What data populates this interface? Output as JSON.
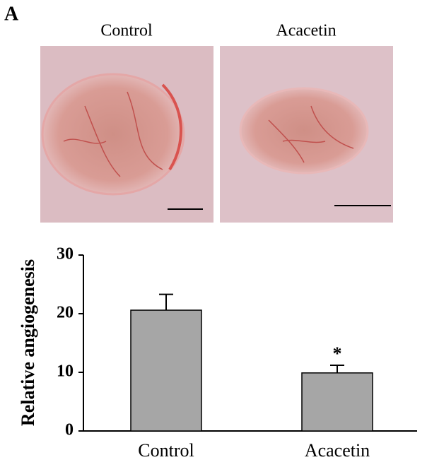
{
  "panel_label": "A",
  "images": [
    {
      "title": "Control"
    },
    {
      "title": "Acacetin"
    }
  ],
  "chart_data": {
    "type": "bar",
    "categories": [
      "Control",
      "Acacetin"
    ],
    "values": [
      20.6,
      9.9
    ],
    "errors": [
      2.7,
      1.3
    ],
    "color": "#a6a6a6",
    "ylabel": "Relative angiogenesis",
    "annotation": "*",
    "ylim": [
      0,
      30
    ],
    "yticks": [
      0,
      10,
      20,
      30
    ],
    "grid": false
  }
}
